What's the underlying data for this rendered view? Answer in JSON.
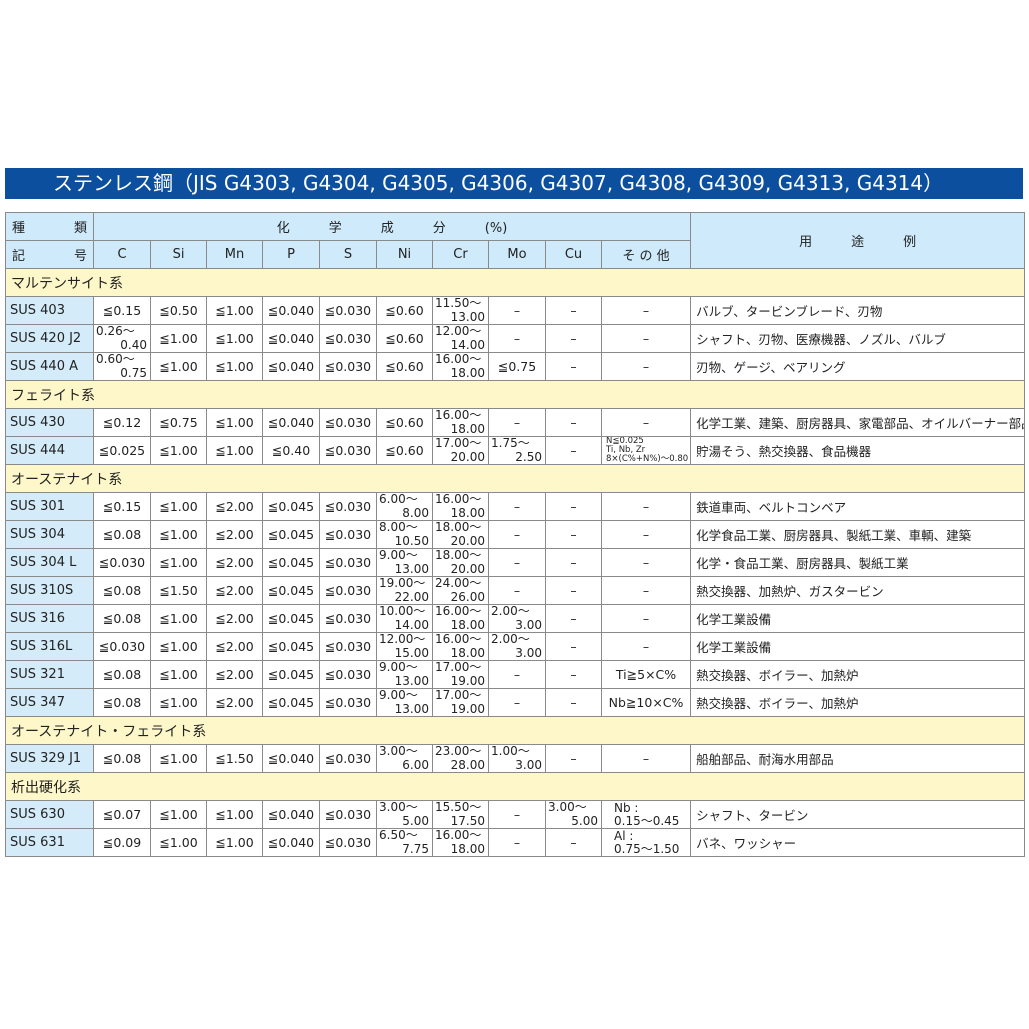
{
  "title": "ステンレス鋼（JIS G4303, G4304, G4305, G4306, G4307, G4308, G4309, G4313, G4314）",
  "header": {
    "kind_a": "種",
    "kind_b": "類",
    "sym_a": "記",
    "sym_b": "号",
    "composition": "化　　　学　　　成　　　分　　　(%)",
    "usage": "用　　　途　　　例",
    "columns": [
      "C",
      "Si",
      "Mn",
      "P",
      "S",
      "Ni",
      "Cr",
      "Mo",
      "Cu",
      "そ の 他"
    ]
  },
  "colors": {
    "title_bg": "#0b4f9e",
    "header_bg": "#cfeafa",
    "section_bg": "#fdf7c9",
    "id_bg": "#d4ecfa"
  },
  "sections": [
    {
      "name": "マルテンサイト系",
      "rows": [
        {
          "id": "SUS 403",
          "vals": [
            "≦0.15",
            "≦0.50",
            "≦1.00",
            "≦0.040",
            "≦0.030",
            "≦0.60",
            {
              "from": "11.50～",
              "to": "13.00"
            },
            "–",
            "–",
            "–"
          ],
          "use": "バルブ、タービンブレード、刃物"
        },
        {
          "id": "SUS 420 J2",
          "vals": [
            {
              "from": "0.26～",
              "to": "0.40"
            },
            "≦1.00",
            "≦1.00",
            "≦0.040",
            "≦0.030",
            "≦0.60",
            {
              "from": "12.00～",
              "to": "14.00"
            },
            "–",
            "–",
            "–"
          ],
          "use": "シャフト、刃物、医療機器、ノズル、バルブ"
        },
        {
          "id": "SUS 440 A",
          "vals": [
            {
              "from": "0.60～",
              "to": "0.75"
            },
            "≦1.00",
            "≦1.00",
            "≦0.040",
            "≦0.030",
            "≦0.60",
            {
              "from": "16.00～",
              "to": "18.00"
            },
            "≦0.75",
            "–",
            "–"
          ],
          "use": "刃物、ゲージ、ベアリング"
        }
      ]
    },
    {
      "name": "フェライト系",
      "rows": [
        {
          "id": "SUS 430",
          "vals": [
            "≦0.12",
            "≦0.75",
            "≦1.00",
            "≦0.040",
            "≦0.030",
            "≦0.60",
            {
              "from": "16.00～",
              "to": "18.00"
            },
            "–",
            "–",
            "–"
          ],
          "use": "化学工業、建築、厨房器具、家電部品、オイルバーナー部品"
        },
        {
          "id": "SUS 444",
          "vals": [
            "≦0.025",
            "≦1.00",
            "≦1.00",
            "≦0.40",
            "≦0.030",
            "≦0.60",
            {
              "from": "17.00～",
              "to": "20.00"
            },
            {
              "from": "1.75～",
              "to": "2.50"
            },
            "–",
            {
              "lines": [
                "N≦0.025",
                "Ti, Nb, Zr",
                "8×(C%+N%)～0.80"
              ]
            }
          ],
          "use": "貯湯そう、熱交換器、食品機器"
        }
      ]
    },
    {
      "name": "オーステナイト系",
      "rows": [
        {
          "id": "SUS 301",
          "vals": [
            "≦0.15",
            "≦1.00",
            "≦2.00",
            "≦0.045",
            "≦0.030",
            {
              "from": "6.00～",
              "to": "8.00"
            },
            {
              "from": "16.00～",
              "to": "18.00"
            },
            "–",
            "–",
            "–"
          ],
          "use": "鉄道車両、ベルトコンベア"
        },
        {
          "id": "SUS 304",
          "vals": [
            "≦0.08",
            "≦1.00",
            "≦2.00",
            "≦0.045",
            "≦0.030",
            {
              "from": "8.00～",
              "to": "10.50"
            },
            {
              "from": "18.00～",
              "to": "20.00"
            },
            "–",
            "–",
            "–"
          ],
          "use": "化学食品工業、厨房器具、製紙工業、車輌、建築"
        },
        {
          "id": "SUS 304 L",
          "vals": [
            "≦0.030",
            "≦1.00",
            "≦2.00",
            "≦0.045",
            "≦0.030",
            {
              "from": "9.00～",
              "to": "13.00"
            },
            {
              "from": "18.00～",
              "to": "20.00"
            },
            "–",
            "–",
            "–"
          ],
          "use": "化学・食品工業、厨房器具、製紙工業"
        },
        {
          "id": "SUS 310S",
          "vals": [
            "≦0.08",
            "≦1.50",
            "≦2.00",
            "≦0.045",
            "≦0.030",
            {
              "from": "19.00～",
              "to": "22.00"
            },
            {
              "from": "24.00～",
              "to": "26.00"
            },
            "–",
            "–",
            "–"
          ],
          "use": "熱交換器、加熱炉、ガスタービン"
        },
        {
          "id": "SUS 316",
          "vals": [
            "≦0.08",
            "≦1.00",
            "≦2.00",
            "≦0.045",
            "≦0.030",
            {
              "from": "10.00～",
              "to": "14.00"
            },
            {
              "from": "16.00～",
              "to": "18.00"
            },
            {
              "from": "2.00～",
              "to": "3.00"
            },
            "–",
            "–"
          ],
          "use": "化学工業設備"
        },
        {
          "id": "SUS 316L",
          "vals": [
            "≦0.030",
            "≦1.00",
            "≦2.00",
            "≦0.045",
            "≦0.030",
            {
              "from": "12.00～",
              "to": "15.00"
            },
            {
              "from": "16.00～",
              "to": "18.00"
            },
            {
              "from": "2.00～",
              "to": "3.00"
            },
            "–",
            "–"
          ],
          "use": "化学工業設備"
        },
        {
          "id": "SUS 321",
          "vals": [
            "≦0.08",
            "≦1.00",
            "≦2.00",
            "≦0.045",
            "≦0.030",
            {
              "from": "9.00～",
              "to": "13.00"
            },
            {
              "from": "17.00～",
              "to": "19.00"
            },
            "–",
            "–",
            "Ti≧5×C%"
          ],
          "use": "熱交換器、ボイラー、加熱炉"
        },
        {
          "id": "SUS 347",
          "vals": [
            "≦0.08",
            "≦1.00",
            "≦2.00",
            "≦0.045",
            "≦0.030",
            {
              "from": "9.00～",
              "to": "13.00"
            },
            {
              "from": "17.00～",
              "to": "19.00"
            },
            "–",
            "–",
            "Nb≧10×C%"
          ],
          "use": "熱交換器、ボイラー、加熱炉"
        }
      ]
    },
    {
      "name": "オーステナイト・フェライト系",
      "rows": [
        {
          "id": "SUS 329 J1",
          "vals": [
            "≦0.08",
            "≦1.00",
            "≦1.50",
            "≦0.040",
            "≦0.030",
            {
              "from": "3.00～",
              "to": "6.00"
            },
            {
              "from": "23.00～",
              "to": "28.00"
            },
            {
              "from": "1.00～",
              "to": "3.00"
            },
            "–",
            "–"
          ],
          "use": "船舶部品、耐海水用部品"
        }
      ]
    },
    {
      "name": "析出硬化系",
      "rows": [
        {
          "id": "SUS 630",
          "vals": [
            "≦0.07",
            "≦1.00",
            "≦1.00",
            "≦0.040",
            "≦0.030",
            {
              "from": "3.00～",
              "to": "5.00"
            },
            {
              "from": "15.50～",
              "to": "17.50"
            },
            "–",
            {
              "from": "3.00～",
              "to": "5.00"
            },
            {
              "lines": [
                "Nb :",
                "0.15～0.45"
              ],
              "big": true
            }
          ],
          "use": "シャフト、タービン"
        },
        {
          "id": "SUS 631",
          "vals": [
            "≦0.09",
            "≦1.00",
            "≦1.00",
            "≦0.040",
            "≦0.030",
            {
              "from": "6.50～",
              "to": "7.75"
            },
            {
              "from": "16.00～",
              "to": "18.00"
            },
            "–",
            "–",
            {
              "lines": [
                "Al :",
                "0.75～1.50"
              ],
              "big": true
            }
          ],
          "use": "バネ、ワッシャー"
        }
      ]
    }
  ]
}
